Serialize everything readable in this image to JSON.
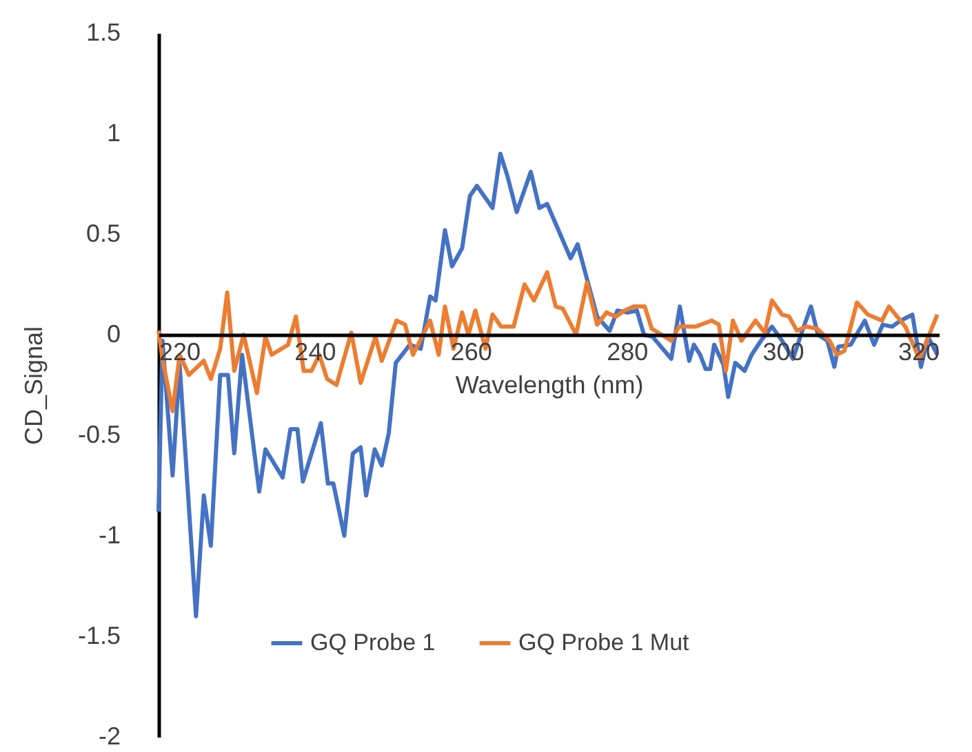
{
  "chart_data": {
    "type": "line",
    "xlabel": "Wavelength (nm)",
    "ylabel": "CD_Signal",
    "xlim": [
      220,
      320
    ],
    "xticks": [
      220,
      240,
      260,
      280,
      300,
      320
    ],
    "ylim": [
      -2,
      1.5
    ],
    "yticks": [
      -2,
      -1.5,
      -1,
      -0.5,
      0,
      0.5,
      1,
      1.5
    ],
    "grid": false,
    "legend": "bottom",
    "line_style": "solid",
    "series": [
      {
        "name": "GQ Probe 1",
        "color": "#4472c4",
        "x": [
          220,
          220.5,
          221.8,
          222.7,
          224.8,
          225.8,
          226.7,
          227.9,
          228.9,
          229.7,
          230.7,
          232.9,
          233.7,
          235.9,
          236.9,
          237.8,
          238.5,
          240.8,
          241.7,
          242.4,
          243.8,
          244.9,
          245.9,
          246.6,
          247.7,
          248.6,
          249.5,
          250.4,
          252.2,
          253.6,
          254.8,
          255.5,
          256.7,
          257.6,
          258.9,
          259.9,
          260.8,
          262.8,
          263.8,
          264.7,
          265.9,
          267.7,
          268.8,
          269.8,
          272.8,
          273.7,
          276.2,
          277.8,
          278.8,
          280.1,
          281.3,
          282.2,
          283.3,
          285.7,
          286.8,
          288.0,
          288.6,
          289.4,
          290.1,
          290.7,
          291.2,
          292.4,
          293.0,
          293.9,
          295.1,
          296.0,
          297.2,
          298.6,
          299.9,
          301.3,
          302.5,
          303.6,
          304.5,
          305.7,
          306.6,
          307.1,
          308.7,
          310.5,
          311.7,
          312.8,
          314.0,
          315.1,
          316.6,
          317.7,
          318.6,
          319.8
        ],
        "values": [
          -0.88,
          -0.03,
          -0.7,
          -0.15,
          -1.4,
          -0.8,
          -1.05,
          -0.2,
          -0.2,
          -0.59,
          -0.1,
          -0.78,
          -0.57,
          -0.71,
          -0.47,
          -0.47,
          -0.73,
          -0.44,
          -0.74,
          -0.74,
          -1.0,
          -0.59,
          -0.56,
          -0.8,
          -0.57,
          -0.65,
          -0.49,
          -0.14,
          -0.05,
          -0.07,
          0.19,
          0.17,
          0.52,
          0.34,
          0.43,
          0.69,
          0.74,
          0.63,
          0.9,
          0.79,
          0.61,
          0.81,
          0.63,
          0.65,
          0.38,
          0.45,
          0.09,
          0.02,
          0.12,
          0.11,
          0.12,
          0,
          -0.01,
          -0.12,
          0.14,
          -0.13,
          -0.05,
          -0.1,
          -0.17,
          -0.17,
          -0.05,
          -0.15,
          -0.31,
          -0.14,
          -0.18,
          -0.1,
          -0.03,
          0.04,
          -0.03,
          -0.12,
          0.02,
          0.14,
          0,
          -0.03,
          -0.16,
          -0.06,
          -0.05,
          0.07,
          -0.05,
          0.05,
          0.04,
          0.07,
          0.1,
          -0.16,
          -0.01,
          -0.1
        ]
      },
      {
        "name": "GQ Probe 1 Mut",
        "color": "#ed7d31",
        "x": [
          220,
          220.5,
          221.8,
          222.7,
          223.9,
          225.8,
          226.7,
          227.9,
          228.8,
          229.7,
          230.9,
          232.6,
          233.7,
          234.5,
          236.6,
          237.6,
          238.6,
          239.6,
          240.6,
          241.6,
          242.8,
          244.7,
          245.9,
          247.8,
          248.6,
          250.5,
          251.6,
          252.6,
          254.8,
          255.9,
          256.7,
          257.8,
          258.9,
          259.7,
          260.6,
          261.9,
          262.8,
          263.9,
          265.5,
          266.9,
          268.1,
          269.8,
          270.9,
          271.8,
          273.5,
          274.9,
          276.2,
          277.4,
          278.6,
          279.7,
          280.9,
          282.3,
          283.2,
          285.7,
          286.7,
          288.8,
          290.9,
          291.8,
          292.7,
          293.6,
          294.7,
          296.5,
          297.7,
          298.6,
          299.9,
          300.8,
          301.8,
          303.0,
          304.4,
          306.0,
          306.9,
          307.9,
          309.5,
          310.9,
          312.7,
          313.6,
          315.7,
          317.5,
          319.8
        ],
        "values": [
          0.02,
          -0.12,
          -0.38,
          -0.1,
          -0.2,
          -0.13,
          -0.22,
          -0.07,
          0.21,
          -0.18,
          0,
          -0.29,
          -0.01,
          -0.1,
          -0.05,
          0.09,
          -0.18,
          -0.18,
          -0.1,
          -0.22,
          -0.25,
          0.01,
          -0.24,
          -0.01,
          -0.13,
          0.07,
          0.05,
          -0.1,
          0.07,
          -0.1,
          0.14,
          -0.07,
          0.11,
          0,
          0.12,
          -0.07,
          0.1,
          0.04,
          0.04,
          0.25,
          0.17,
          0.31,
          0.14,
          0.13,
          0,
          0.26,
          0.05,
          0.11,
          0.09,
          0.12,
          0.14,
          0.14,
          0.03,
          -0.03,
          0.04,
          0.04,
          0.07,
          0.05,
          -0.18,
          0.07,
          -0.03,
          0.07,
          0.01,
          0.17,
          0.1,
          0.09,
          0.02,
          0.04,
          0.03,
          -0.03,
          -0.1,
          -0.08,
          0.16,
          0.1,
          0.07,
          0.14,
          0.04,
          -0.12,
          0.1
        ]
      }
    ]
  }
}
